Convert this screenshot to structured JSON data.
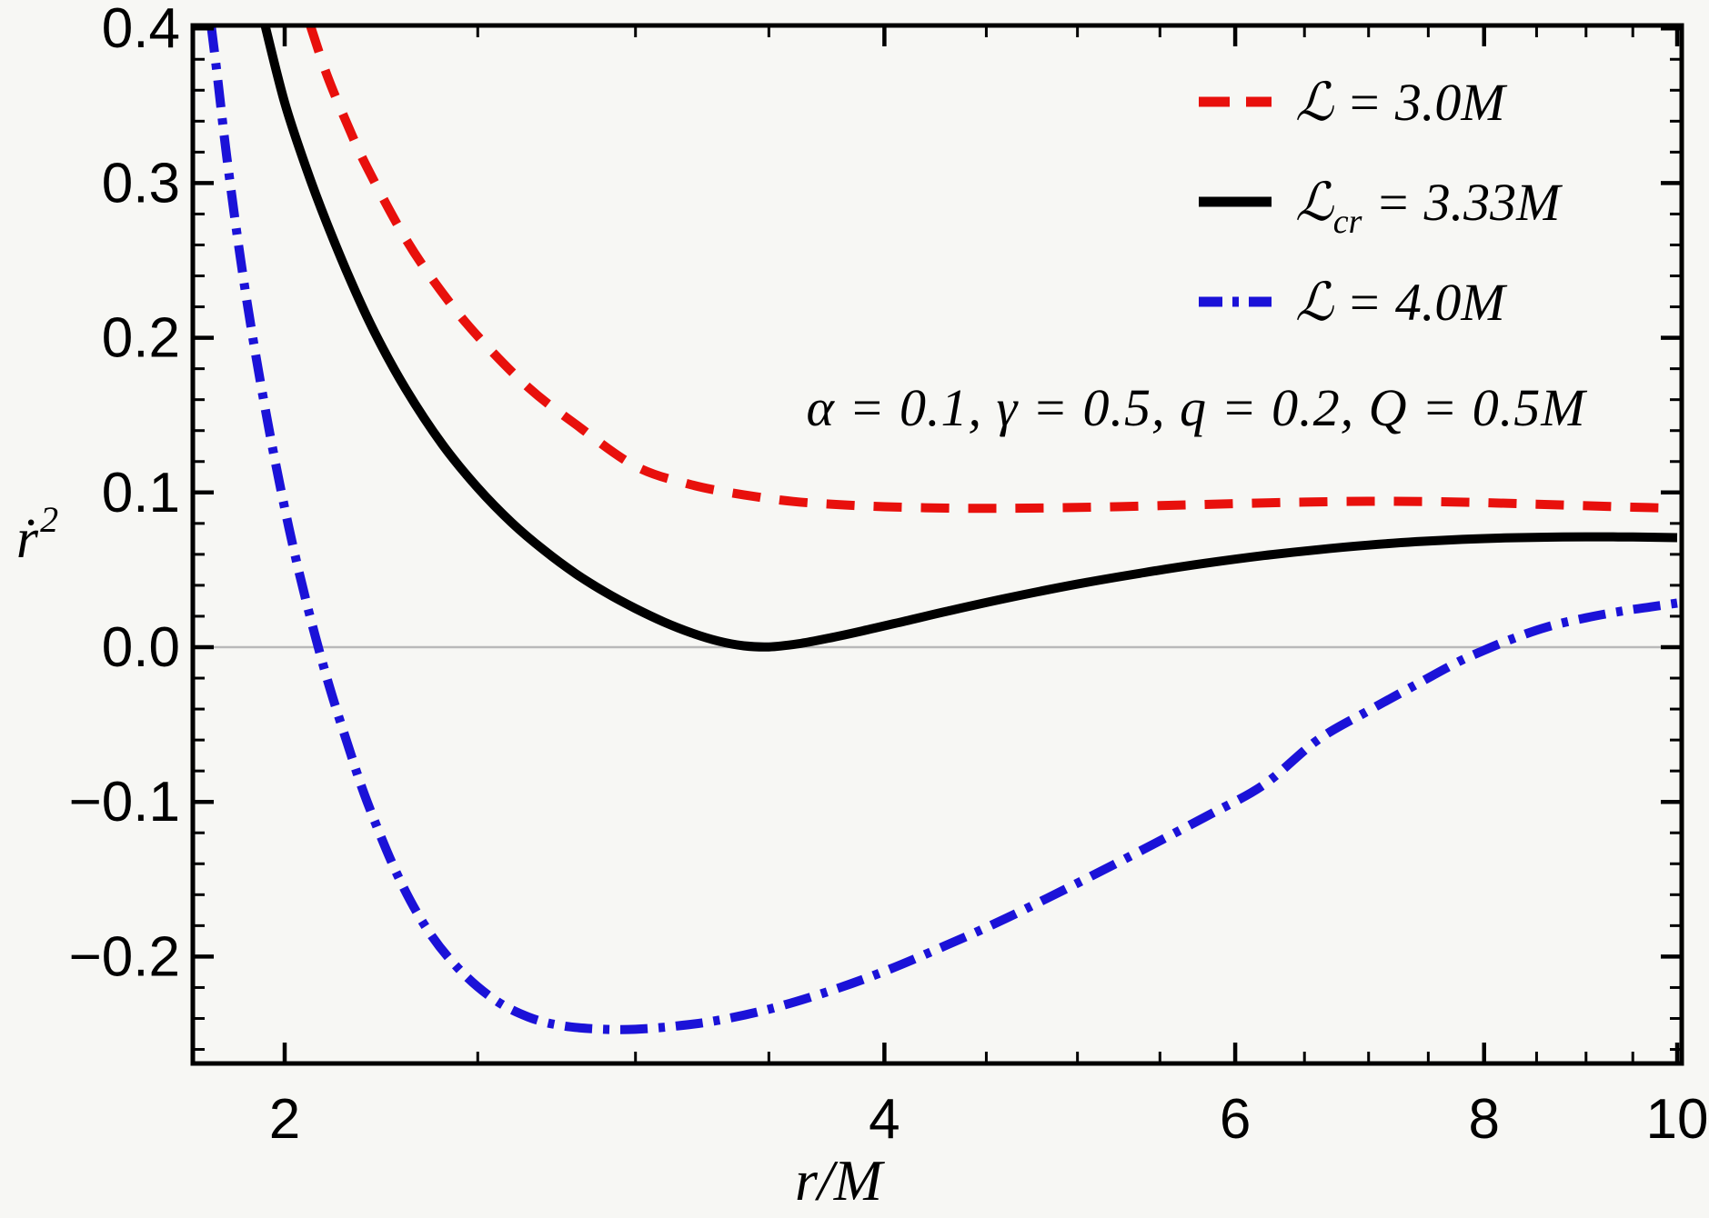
{
  "figure": {
    "background": "#f7f7f4",
    "ylabel_base": "ṙ",
    "ylabel_exponent": "2",
    "xlabel": "r/M",
    "annotation": "α = 0.1,  γ = 0.5,  q = 0.2,  Q = 0.5M"
  },
  "chart_data": {
    "type": "line",
    "title": "",
    "xlabel": "r/M",
    "ylabel": "ṙ²",
    "x_scale": "log",
    "x_range": [
      1.8,
      10.07
    ],
    "y_range": [
      -0.269,
      0.402
    ],
    "x_major_ticks": [
      2,
      4,
      6,
      8,
      10
    ],
    "x_tick_labels": [
      "2",
      "4",
      "6",
      "8",
      "10"
    ],
    "x_minor_tick_step": 0.5,
    "y_major_ticks": [
      0.4,
      0.3,
      0.2,
      0.1,
      0,
      -0.1,
      -0.2
    ],
    "y_tick_labels": [
      "0.4",
      "0.3",
      "0.2",
      "0.1",
      "0.0",
      "−0.1",
      "−0.2"
    ],
    "y_minor_tick_step": 0.02,
    "gridlines_y": [
      0
    ],
    "grid_color": "#b9b9b9",
    "frame_color": "#000000",
    "annotation": "α = 0.1, γ = 0.5, q = 0.2, Q = 0.5M",
    "legend_position": "top-right",
    "series": [
      {
        "name": "ℒ = 3.0M",
        "legend_symbol": "ℒ",
        "legend_subscript": "",
        "legend_value": " = 3.0M",
        "color": "#e8100c",
        "style": "dashed",
        "dash": [
          31,
          21
        ],
        "points": [
          [
            2.06,
            0.402
          ],
          [
            2.1,
            0.37
          ],
          [
            2.15,
            0.338
          ],
          [
            2.2,
            0.31
          ],
          [
            2.3,
            0.264
          ],
          [
            2.4,
            0.229
          ],
          [
            2.5,
            0.201
          ],
          [
            2.65,
            0.168
          ],
          [
            2.8,
            0.144
          ],
          [
            3.0,
            0.117
          ],
          [
            3.2,
            0.105
          ],
          [
            3.4,
            0.0985
          ],
          [
            3.6,
            0.0942
          ],
          [
            3.8,
            0.0921
          ],
          [
            4.0,
            0.0908
          ],
          [
            4.3,
            0.0899
          ],
          [
            4.6,
            0.0898
          ],
          [
            5.0,
            0.0903
          ],
          [
            5.5,
            0.0915
          ],
          [
            6.0,
            0.0928
          ],
          [
            6.5,
            0.0938
          ],
          [
            7.0,
            0.0943
          ],
          [
            7.5,
            0.0941
          ],
          [
            8.0,
            0.0934
          ],
          [
            8.5,
            0.0924
          ],
          [
            9.0,
            0.0914
          ],
          [
            9.5,
            0.0905
          ],
          [
            10.0,
            0.0898
          ]
        ]
      },
      {
        "name": "ℒcr = 3.33M",
        "legend_symbol": "ℒ",
        "legend_subscript": "cr",
        "legend_value": " = 3.33M",
        "color": "#000000",
        "style": "solid",
        "dash": [],
        "points": [
          [
            1.955,
            0.402
          ],
          [
            2.0,
            0.352
          ],
          [
            2.05,
            0.31
          ],
          [
            2.1,
            0.274
          ],
          [
            2.16,
            0.236
          ],
          [
            2.22,
            0.203
          ],
          [
            2.3,
            0.167
          ],
          [
            2.4,
            0.131
          ],
          [
            2.5,
            0.103
          ],
          [
            2.6,
            0.0805
          ],
          [
            2.7,
            0.0625
          ],
          [
            2.8,
            0.0475
          ],
          [
            2.9,
            0.0352
          ],
          [
            3.0,
            0.025
          ],
          [
            3.1,
            0.0163
          ],
          [
            3.2,
            0.0093
          ],
          [
            3.3,
            0.004
          ],
          [
            3.4,
            0.0009
          ],
          [
            3.5,
            0.0002
          ],
          [
            3.62,
            0.0022
          ],
          [
            3.75,
            0.0058
          ],
          [
            3.9,
            0.0105
          ],
          [
            4.1,
            0.017
          ],
          [
            4.3,
            0.0232
          ],
          [
            4.6,
            0.0315
          ],
          [
            5.0,
            0.0408
          ],
          [
            5.4,
            0.0482
          ],
          [
            5.8,
            0.0543
          ],
          [
            6.2,
            0.0592
          ],
          [
            6.6,
            0.063
          ],
          [
            7.0,
            0.066
          ],
          [
            7.4,
            0.0682
          ],
          [
            7.8,
            0.0697
          ],
          [
            8.2,
            0.0706
          ],
          [
            8.6,
            0.0711
          ],
          [
            9.0,
            0.0713
          ],
          [
            9.5,
            0.0712
          ],
          [
            10.0,
            0.0708
          ]
        ]
      },
      {
        "name": "ℒ = 4.0M",
        "legend_symbol": "ℒ",
        "legend_subscript": "",
        "legend_value": " = 4.0M",
        "color": "#1b12d8",
        "style": "dash-dot",
        "dash": [
          30,
          12,
          7,
          12
        ],
        "points": [
          [
            1.837,
            0.402
          ],
          [
            1.85,
            0.37
          ],
          [
            1.87,
            0.318
          ],
          [
            1.9,
            0.252
          ],
          [
            1.93,
            0.196
          ],
          [
            1.97,
            0.132
          ],
          [
            2.01,
            0.077
          ],
          [
            2.05,
            0.03
          ],
          [
            2.1,
            -0.02
          ],
          [
            2.15,
            -0.062
          ],
          [
            2.2,
            -0.1
          ],
          [
            2.28,
            -0.148
          ],
          [
            2.36,
            -0.183
          ],
          [
            2.45,
            -0.209
          ],
          [
            2.55,
            -0.228
          ],
          [
            2.65,
            -0.239
          ],
          [
            2.75,
            -0.2445
          ],
          [
            2.87,
            -0.2468
          ],
          [
            3.0,
            -0.247
          ],
          [
            3.15,
            -0.2448
          ],
          [
            3.3,
            -0.2412
          ],
          [
            3.5,
            -0.234
          ],
          [
            3.75,
            -0.2225
          ],
          [
            4.0,
            -0.2095
          ],
          [
            4.3,
            -0.1925
          ],
          [
            4.6,
            -0.1755
          ],
          [
            5.0,
            -0.1525
          ],
          [
            5.4,
            -0.1305
          ],
          [
            5.8,
            -0.1095
          ],
          [
            6.2,
            -0.089
          ],
          [
            6.6,
            -0.06
          ],
          [
            7.0,
            -0.041
          ],
          [
            7.4,
            -0.024
          ],
          [
            7.75,
            -0.01
          ],
          [
            8.0,
            -0.002
          ],
          [
            8.25,
            0.005
          ],
          [
            8.6,
            0.013
          ],
          [
            9.0,
            0.019
          ],
          [
            9.4,
            0.0235
          ],
          [
            9.7,
            0.026
          ],
          [
            10.0,
            0.0285
          ]
        ]
      }
    ]
  }
}
